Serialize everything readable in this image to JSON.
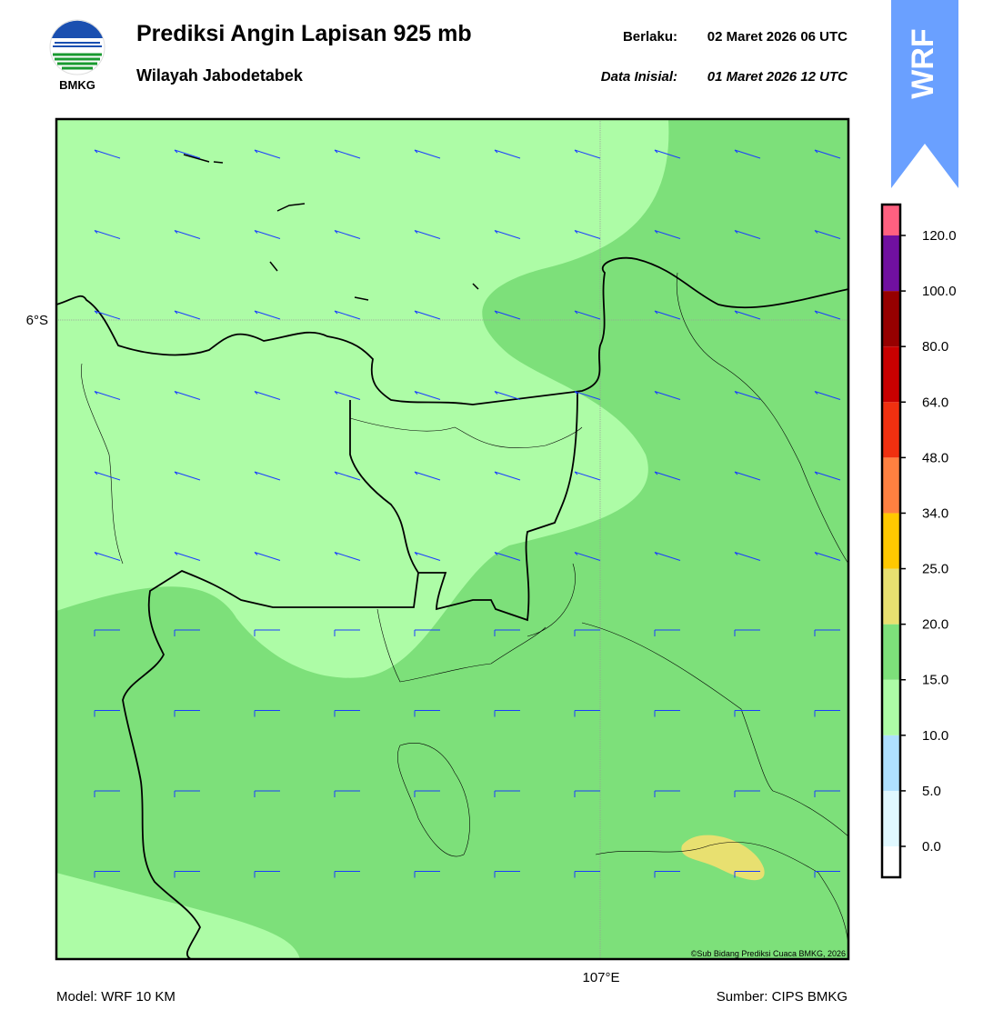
{
  "header": {
    "logo_text": "BMKG",
    "title": "Prediksi Angin Lapisan 925 mb",
    "subtitle": "Wilayah Jabodetabek",
    "valid_label": "Berlaku:",
    "valid_time": "02 Maret 2026 06 UTC",
    "init_label": "Data Inisial:",
    "init_time": "01 Maret 2026 12 UTC"
  },
  "badge": "WRF",
  "map": {
    "lat_label": "6°S",
    "lon_label": "107°E",
    "credit": "©Sub Bidang Prediksi Cuaca BMKG, 2026"
  },
  "colorbar": {
    "labels": [
      "0.0",
      "5.0",
      "10.0",
      "15.0",
      "20.0",
      "25.0",
      "34.0",
      "48.0",
      "64.0",
      "80.0",
      "100.0",
      "120.0"
    ],
    "colors": [
      "#ffffff",
      "#e0f8ff",
      "#aee0ff",
      "#adfca6",
      "#7de07a",
      "#e8e070",
      "#ffc800",
      "#ff8040",
      "#f03010",
      "#c80000",
      "#960000",
      "#7010a0",
      "#ff6080"
    ]
  },
  "footer": {
    "model": "Model: WRF 10 KM",
    "source": "Sumber: CIPS BMKG"
  }
}
